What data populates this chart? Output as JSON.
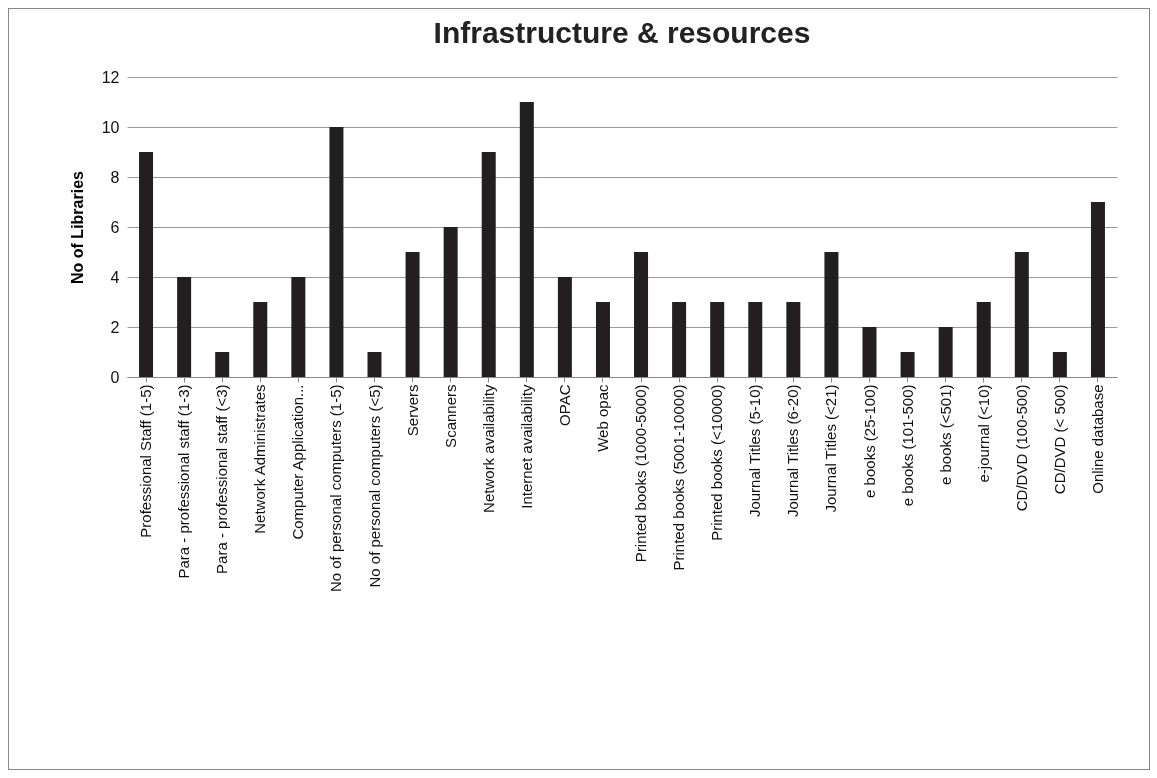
{
  "chart_data": {
    "type": "bar",
    "title": "Infrastructure & resources",
    "ylabel": "No of Libraries",
    "categories": [
      "Professional Staff (1-5)",
      "Para - professional staff (1-3)",
      "Para - professional staff (<3)",
      "Network Administrates",
      "Computer Application...",
      "No of personal computers (1-5)",
      "No of personal computers (<5)",
      "Servers",
      "Scanners",
      "Network availability",
      "Internet availability",
      "OPAC",
      "Web opac",
      "Printed books (1000-5000)",
      "Printed books (5001-10000)",
      "Printed books (<10000)",
      "Journal Titles (5-10)",
      "Journal Titles (6-20)",
      "Journal Titles (<21)",
      "e books (25-100)",
      "e books (101-500)",
      "e books (<501)",
      "e-journal (<10)",
      "CD/DVD (100-500)",
      "CD/DVD (< 500)",
      "Online database"
    ],
    "values": [
      9,
      4,
      1,
      3,
      4,
      10,
      1,
      5,
      6,
      9,
      11,
      4,
      3,
      5,
      3,
      3,
      3,
      3,
      5,
      2,
      1,
      2,
      3,
      5,
      1,
      7
    ],
    "color": "#231f20",
    "ylim": [
      0,
      12
    ],
    "yticks": [
      0,
      2,
      4,
      6,
      8,
      10,
      12
    ],
    "grid": "y"
  }
}
